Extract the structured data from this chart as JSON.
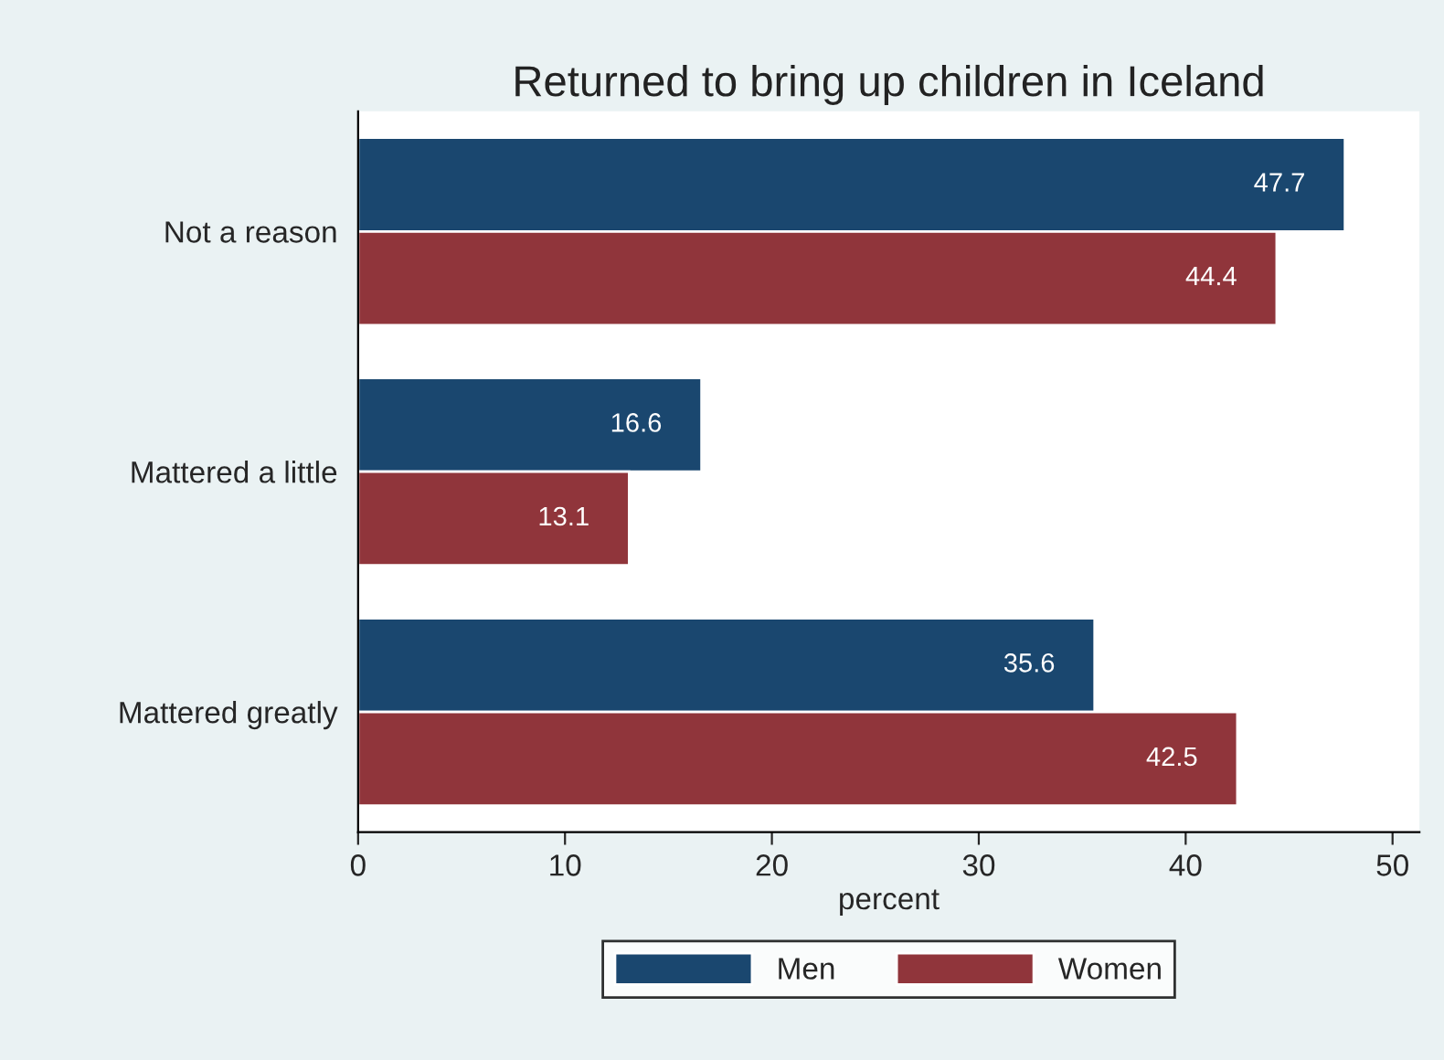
{
  "chart_data": {
    "type": "bar",
    "orientation": "horizontal",
    "title": "Returned to bring up children in Iceland",
    "xlabel": "percent",
    "categories": [
      "Not a reason",
      "Mattered a little",
      "Mattered greatly"
    ],
    "series": [
      {
        "name": "Men",
        "color": "#1a476f",
        "values": [
          47.7,
          16.6,
          35.6
        ]
      },
      {
        "name": "Women",
        "color": "#90353b",
        "values": [
          44.4,
          13.1,
          42.5
        ]
      }
    ],
    "xlim": [
      0,
      51.3
    ],
    "xticks": [
      0,
      10,
      20,
      30,
      40,
      50
    ],
    "data_labels": true,
    "grid": false,
    "legend": "bottom"
  }
}
